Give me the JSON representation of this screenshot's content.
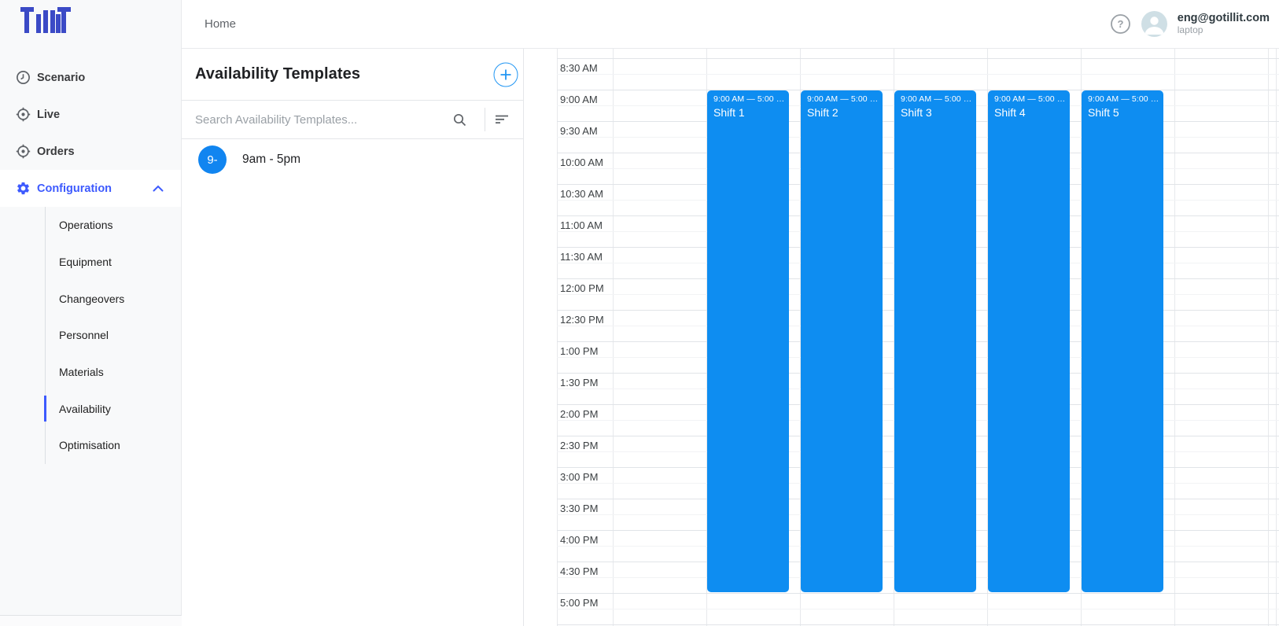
{
  "brand": {
    "logo_text": "TilliT",
    "logo_color": "#3b4ac6"
  },
  "topbar": {
    "breadcrumb": "Home",
    "user": {
      "email": "eng@gotillit.com",
      "device": "laptop"
    }
  },
  "sidebar": {
    "items": [
      {
        "label": "Scenario",
        "icon": "clock-icon",
        "active": false
      },
      {
        "label": "Live",
        "icon": "target-icon",
        "active": false
      },
      {
        "label": "Orders",
        "icon": "target-icon",
        "active": false
      },
      {
        "label": "Configuration",
        "icon": "gear-icon",
        "active": true,
        "expanded": true
      }
    ],
    "config_children": [
      {
        "label": "Operations",
        "selected": false
      },
      {
        "label": "Equipment",
        "selected": false
      },
      {
        "label": "Changeovers",
        "selected": false
      },
      {
        "label": "Personnel",
        "selected": false
      },
      {
        "label": "Materials",
        "selected": false
      },
      {
        "label": "Availability",
        "selected": true
      },
      {
        "label": "Optimisation",
        "selected": false
      }
    ]
  },
  "templates_panel": {
    "title": "Availability Templates",
    "add_button_label": "+",
    "search_placeholder": "Search Availability Templates...",
    "items": [
      {
        "avatar_text": "9-",
        "label": "9am - 5pm"
      }
    ]
  },
  "calendar": {
    "time_labels": [
      "8:30 AM",
      "9:00 AM",
      "9:30 AM",
      "10:00 AM",
      "10:30 AM",
      "11:00 AM",
      "11:30 AM",
      "12:00 PM",
      "12:30 PM",
      "1:00 PM",
      "1:30 PM",
      "2:00 PM",
      "2:30 PM",
      "3:00 PM",
      "3:30 PM",
      "4:00 PM",
      "4:30 PM",
      "5:00 PM"
    ],
    "events": [
      {
        "title": "Shift 1",
        "time_range": "9:00 AM — 5:00 …",
        "column": 1
      },
      {
        "title": "Shift 2",
        "time_range": "9:00 AM — 5:00 …",
        "column": 2
      },
      {
        "title": "Shift 3",
        "time_range": "9:00 AM — 5:00 …",
        "column": 3
      },
      {
        "title": "Shift 4",
        "time_range": "9:00 AM — 5:00 …",
        "column": 4
      },
      {
        "title": "Shift 5",
        "time_range": "9:00 AM — 5:00 …",
        "column": 5
      }
    ]
  },
  "colors": {
    "event_blue": "#0e8df1",
    "accent_blue": "#2196f3",
    "active_nav_blue": "#3d5afe",
    "list_avatar_blue": "#1185f0",
    "header_avatar_bg": "#cfdfe5"
  }
}
